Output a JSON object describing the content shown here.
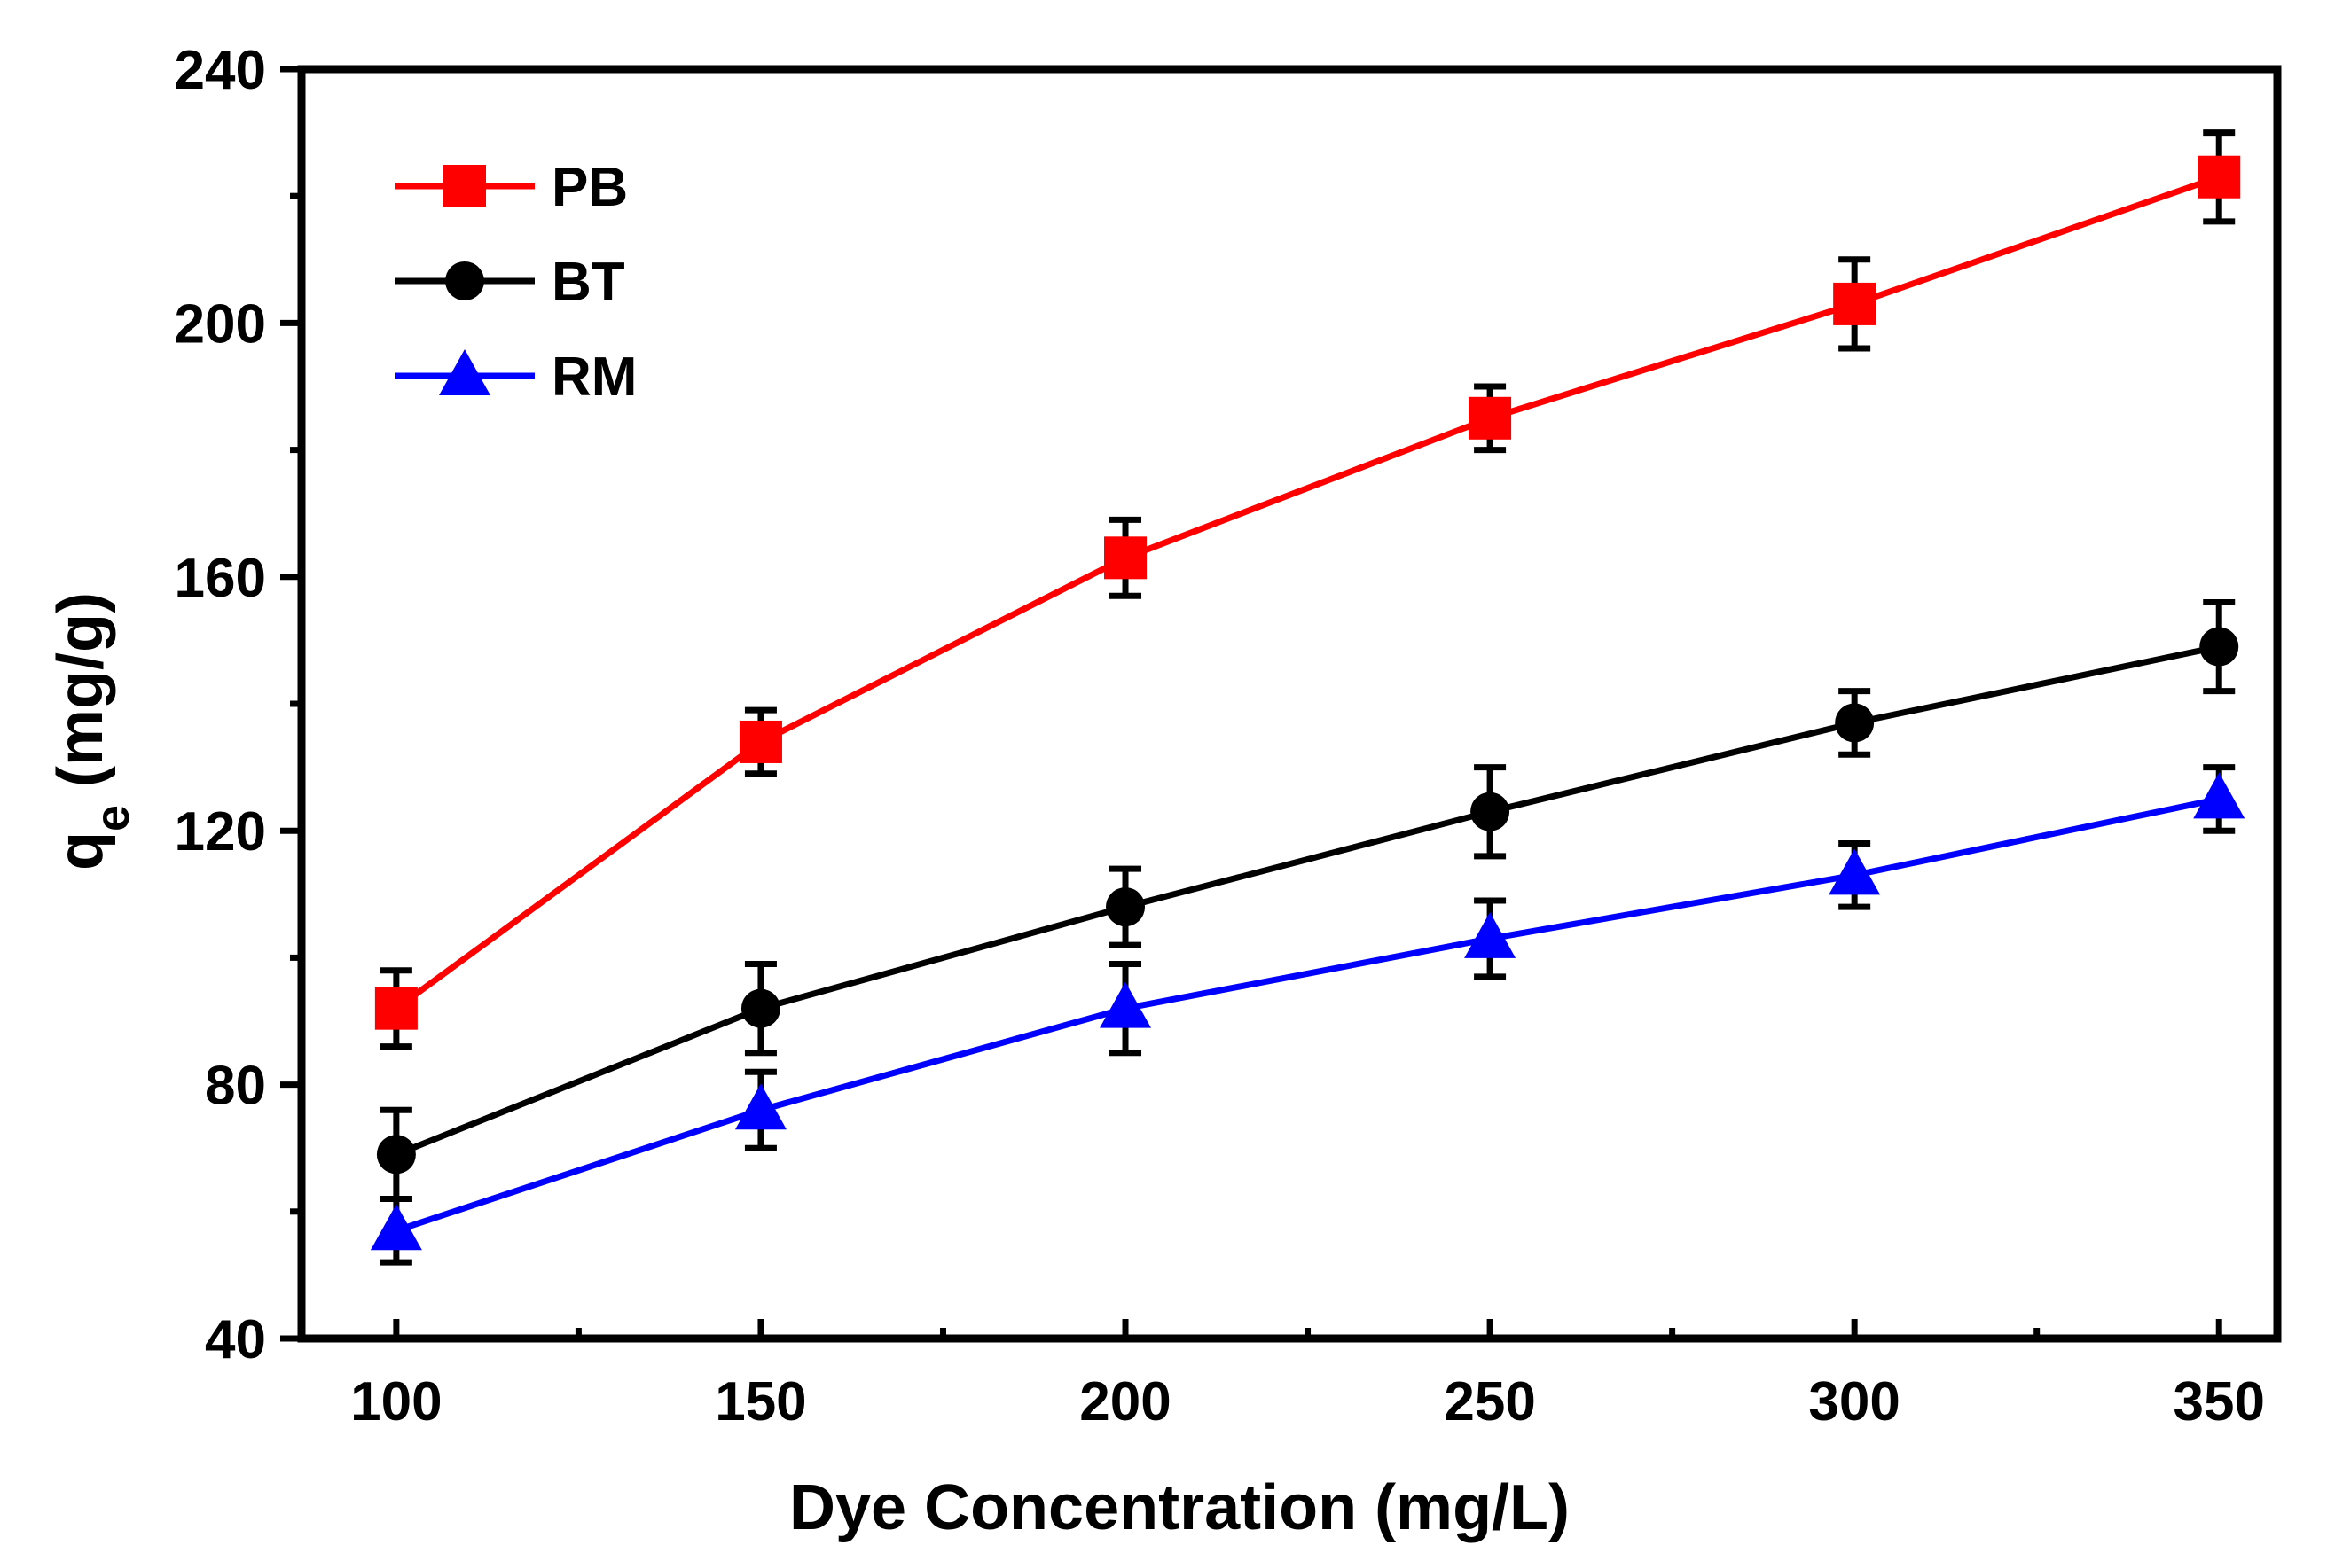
{
  "chart_data": {
    "type": "line",
    "title": "",
    "xlabel": "Dye Concentration (mg/L)",
    "ylabel": {
      "main": "q",
      "sub": "e",
      "unit": " (mg/g)"
    },
    "x": [
      100,
      150,
      200,
      250,
      300,
      350
    ],
    "xlim": [
      87,
      358
    ],
    "ylim": [
      40,
      240
    ],
    "xticks": [
      100,
      150,
      200,
      250,
      300,
      350
    ],
    "yticks": [
      40,
      80,
      120,
      160,
      200,
      240
    ],
    "legend_position": "top-left",
    "grid": false,
    "series": [
      {
        "name": "PB",
        "color": "#ff0000",
        "marker": "square",
        "values": [
          92,
          134,
          163,
          185,
          203,
          223
        ],
        "errors": [
          6,
          5,
          6,
          5,
          7,
          7
        ]
      },
      {
        "name": "BT",
        "color": "#000000",
        "marker": "circle",
        "values": [
          69,
          92,
          108,
          123,
          137,
          149
        ],
        "errors": [
          7,
          7,
          6,
          7,
          5,
          7
        ]
      },
      {
        "name": "RM",
        "color": "#0000ff",
        "marker": "triangle",
        "values": [
          57,
          76,
          92,
          103,
          113,
          125
        ],
        "errors": [
          5,
          6,
          7,
          6,
          5,
          5
        ]
      }
    ]
  }
}
